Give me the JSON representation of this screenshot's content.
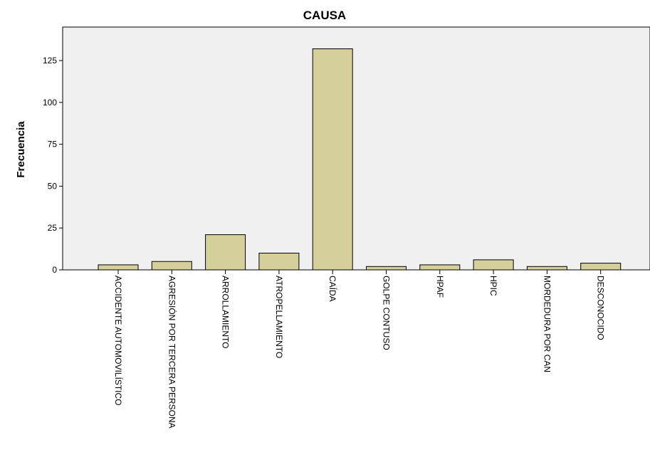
{
  "chart_data": {
    "type": "bar",
    "title": "CAUSA",
    "xlabel": "",
    "ylabel": "Frecuencia",
    "ylim": [
      0,
      145
    ],
    "yticks": [
      0,
      25,
      50,
      75,
      100,
      125
    ],
    "grid": false,
    "categories": [
      "ACCIDENTE AUTOMOVILÍSTICO",
      "AGRESIÓN POR TERCERA PERSONA",
      "ARROLLAMIENTO",
      "ATROPELLAMIENTO",
      "CAÍDA",
      "GOLPE CONTUSO",
      "HPAF",
      "HPIC",
      "MORDEDURA POR CAN",
      "DESCONOCIDO"
    ],
    "values": [
      3,
      5,
      21,
      10,
      132,
      2,
      3,
      6,
      2,
      4
    ],
    "colors": {
      "bar_fill": "#d5cf9c",
      "bar_stroke": "#000000",
      "plot_background": "#f0f0f0"
    }
  }
}
